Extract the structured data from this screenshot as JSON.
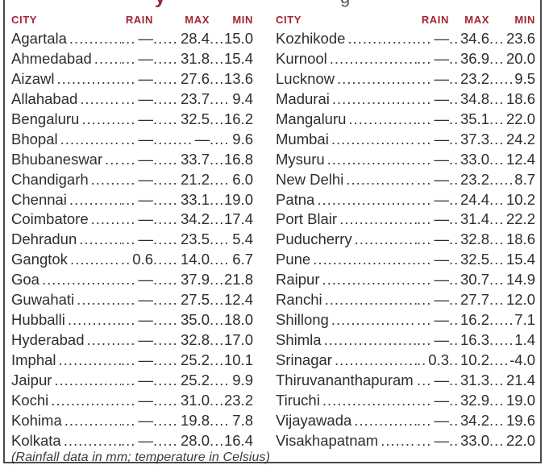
{
  "title_fragments": {
    "red_fragment": "y",
    "gray_fragment": "g"
  },
  "table": {
    "headers": {
      "city": "CITY",
      "rain": "RAIN",
      "max": "MAX",
      "min": "MIN"
    },
    "left_rows": [
      {
        "city": "Agartala",
        "rain": "—",
        "max": "28.4",
        "min": "15.0"
      },
      {
        "city": "Ahmedabad",
        "rain": "—",
        "max": "31.8",
        "min": "15.4"
      },
      {
        "city": "Aizawl",
        "rain": "—",
        "max": "27.6",
        "min": "13.6"
      },
      {
        "city": "Allahabad",
        "rain": "—",
        "max": "23.7",
        "min": "9.4"
      },
      {
        "city": "Bengaluru",
        "rain": "—",
        "max": "32.5",
        "min": "16.2"
      },
      {
        "city": "Bhopal",
        "rain": "—",
        "max": "—",
        "min": "9.6"
      },
      {
        "city": "Bhubaneswar",
        "rain": "—",
        "max": "33.7",
        "min": "16.8"
      },
      {
        "city": "Chandigarh",
        "rain": "—",
        "max": "21.2",
        "min": "6.0"
      },
      {
        "city": "Chennai",
        "rain": "—",
        "max": "33.1",
        "min": "19.0"
      },
      {
        "city": "Coimbatore",
        "rain": "—",
        "max": "34.2",
        "min": "17.4"
      },
      {
        "city": "Dehradun",
        "rain": "—",
        "max": "23.5",
        "min": "5.4"
      },
      {
        "city": "Gangtok",
        "rain": "0.6",
        "max": "14.0",
        "min": "6.7"
      },
      {
        "city": "Goa",
        "rain": "—",
        "max": "37.9",
        "min": "21.8"
      },
      {
        "city": "Guwahati",
        "rain": "—",
        "max": "27.5",
        "min": "12.4"
      },
      {
        "city": "Hubballi",
        "rain": "—",
        "max": "35.0",
        "min": "18.0"
      },
      {
        "city": "Hyderabad",
        "rain": "—",
        "max": "32.8",
        "min": "17.0"
      },
      {
        "city": "Imphal",
        "rain": "—",
        "max": "25.2",
        "min": "10.1"
      },
      {
        "city": "Jaipur",
        "rain": "—",
        "max": "25.2",
        "min": "9.9"
      },
      {
        "city": "Kochi",
        "rain": "—",
        "max": "31.0",
        "min": "23.2"
      },
      {
        "city": "Kohima",
        "rain": "—",
        "max": "19.8",
        "min": "7.8"
      },
      {
        "city": "Kolkata",
        "rain": "—",
        "max": "28.0",
        "min": "16.4"
      }
    ],
    "right_rows": [
      {
        "city": "Kozhikode",
        "rain": "—",
        "max": "34.6",
        "min": "23.6"
      },
      {
        "city": "Kurnool",
        "rain": "—",
        "max": "36.9",
        "min": "20.0"
      },
      {
        "city": "Lucknow",
        "rain": "—",
        "max": "23.2",
        "min": "9.5"
      },
      {
        "city": "Madurai",
        "rain": "—",
        "max": "34.8",
        "min": "18.6"
      },
      {
        "city": "Mangaluru",
        "rain": "—",
        "max": "35.1",
        "min": "22.0"
      },
      {
        "city": "Mumbai",
        "rain": "—",
        "max": "37.3",
        "min": "24.2"
      },
      {
        "city": "Mysuru",
        "rain": "—",
        "max": "33.0",
        "min": "12.4"
      },
      {
        "city": "New Delhi",
        "rain": "—",
        "max": "23.2",
        "min": "8.7"
      },
      {
        "city": "Patna",
        "rain": "—",
        "max": "24.4",
        "min": "10.2"
      },
      {
        "city": "Port Blair",
        "rain": "—",
        "max": "31.4",
        "min": "22.2"
      },
      {
        "city": "Puducherry",
        "rain": "—",
        "max": "32.8",
        "min": "18.6"
      },
      {
        "city": "Pune",
        "rain": "—",
        "max": "32.5",
        "min": "15.4"
      },
      {
        "city": "Raipur",
        "rain": "—",
        "max": "30.7",
        "min": "14.9"
      },
      {
        "city": "Ranchi",
        "rain": "—",
        "max": "27.7",
        "min": "12.0"
      },
      {
        "city": "Shillong",
        "rain": "—",
        "max": "16.2",
        "min": "7.1"
      },
      {
        "city": "Shimla",
        "rain": "—",
        "max": "16.3",
        "min": "1.4"
      },
      {
        "city": "Srinagar",
        "rain": "0.3",
        "max": "10.2",
        "min": "-4.0"
      },
      {
        "city": "Thiruvananthapuram",
        "rain": "—",
        "max": "31.3",
        "min": "21.4"
      },
      {
        "city": "Tiruchi",
        "rain": "—",
        "max": "32.9",
        "min": "19.0"
      },
      {
        "city": "Vijayawada",
        "rain": "—",
        "max": "34.2",
        "min": "19.6"
      },
      {
        "city": "Visakhapatnam",
        "rain": "—",
        "max": "33.0",
        "min": "22.0"
      }
    ],
    "footnote": "(Rainfall data in mm; temperature in Celsius)"
  },
  "colors": {
    "header_red": "#a32431",
    "text": "#2e2e2e",
    "border": "#4a4a4a",
    "footnote_gray": "#3c3c3c"
  }
}
